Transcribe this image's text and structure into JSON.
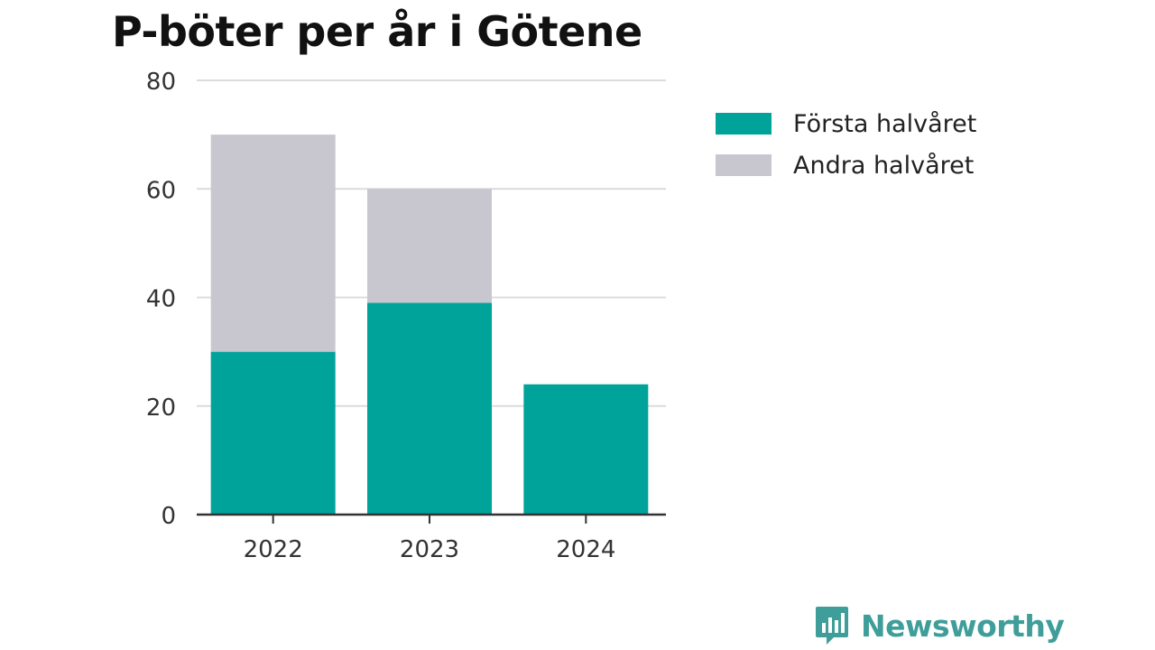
{
  "chart_data": {
    "type": "bar",
    "stacked": true,
    "title": "P-böter per år i Götene",
    "categories": [
      "2022",
      "2023",
      "2024"
    ],
    "series": [
      {
        "name": "Första halvåret",
        "values": [
          30,
          39,
          24
        ],
        "color": "#00a39a"
      },
      {
        "name": "Andra halvåret",
        "values": [
          40,
          21,
          0
        ],
        "color": "#c8c7d0"
      }
    ],
    "y_ticks": [
      "0",
      "20",
      "40",
      "60",
      "80"
    ],
    "ylim": [
      0,
      80
    ],
    "grid": true,
    "legend_position": "right"
  },
  "branding": {
    "logo_text": "Newsworthy",
    "logo_color": "#3f9e99"
  }
}
